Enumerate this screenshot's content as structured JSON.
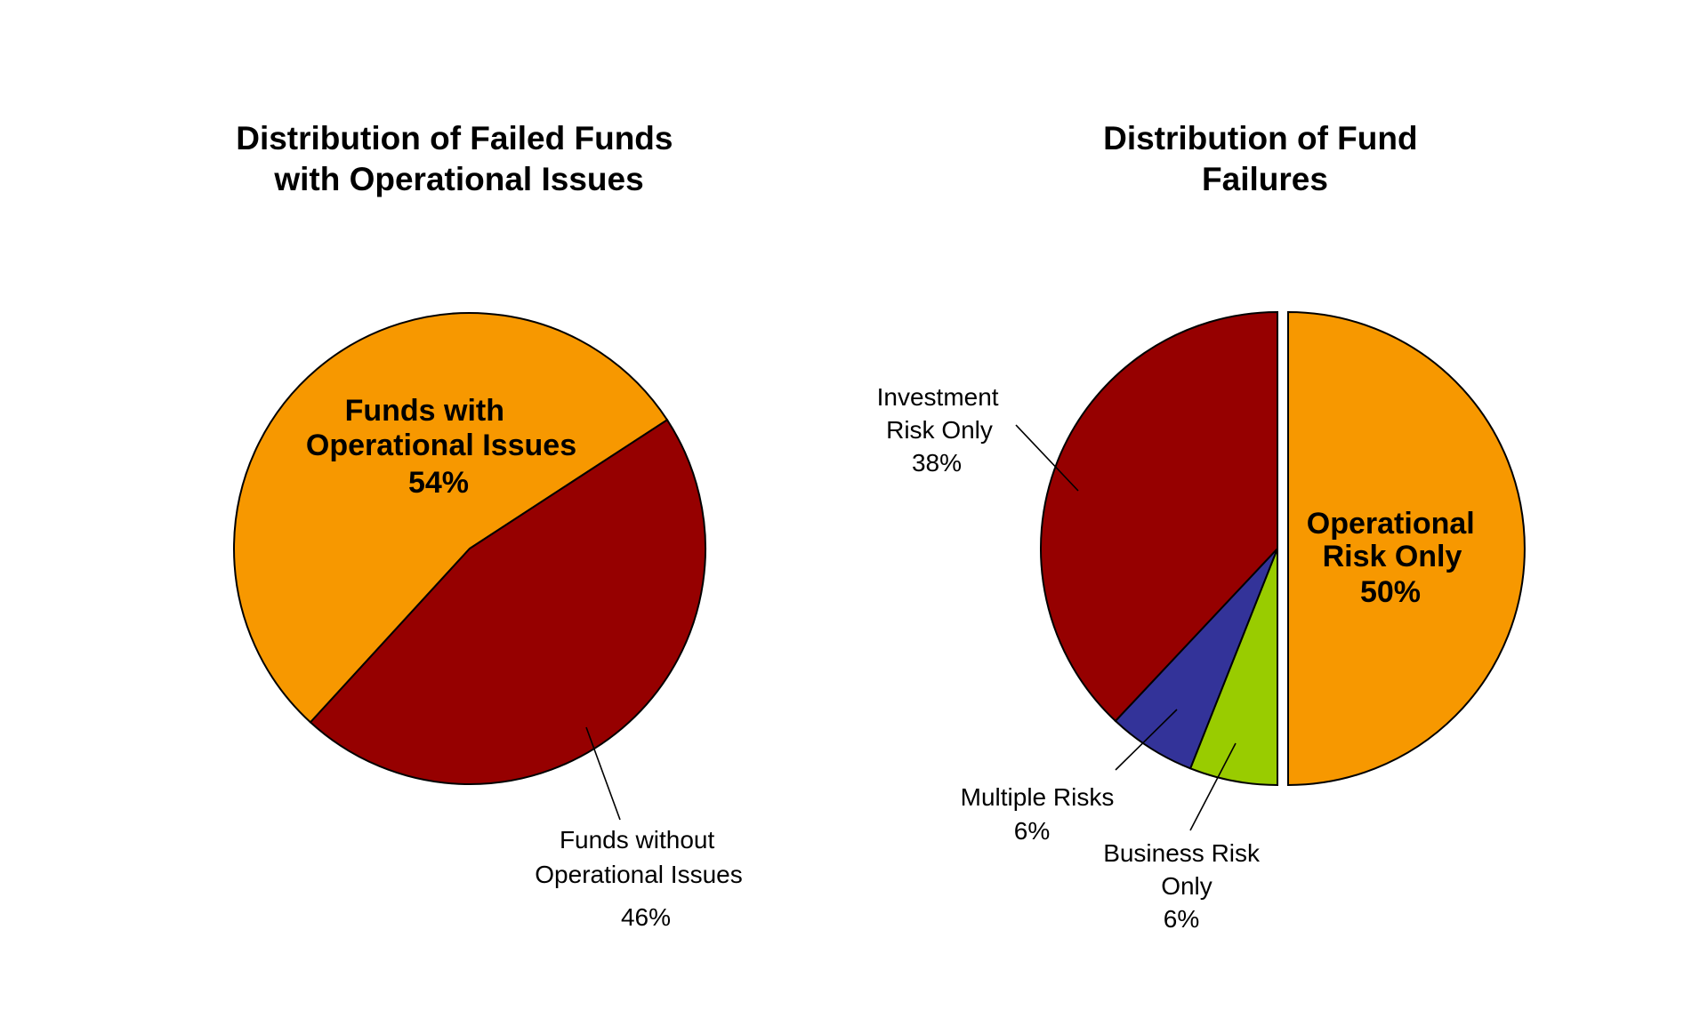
{
  "chart_data": [
    {
      "type": "pie",
      "title": "Distribution of Failed Funds with Operational Issues",
      "slices": [
        {
          "label": "Funds with Operational Issues",
          "value": 54,
          "value_label": "54%",
          "color": "#F79800"
        },
        {
          "label": "Funds without Operational Issues",
          "value": 46,
          "value_label": "46%",
          "color": "#960000"
        }
      ]
    },
    {
      "type": "pie",
      "title": "Distribution of Fund Failures",
      "slices": [
        {
          "label": "Operational Risk Only",
          "value": 50,
          "value_label": "50%",
          "color": "#F79800",
          "exploded": true
        },
        {
          "label": "Business Risk Only",
          "value": 6,
          "value_label": "6%",
          "color": "#99CC00"
        },
        {
          "label": "Multiple Risks",
          "value": 6,
          "value_label": "6%",
          "color": "#333399"
        },
        {
          "label": "Investment Risk Only",
          "value": 38,
          "value_label": "38%",
          "color": "#960000"
        }
      ]
    }
  ]
}
